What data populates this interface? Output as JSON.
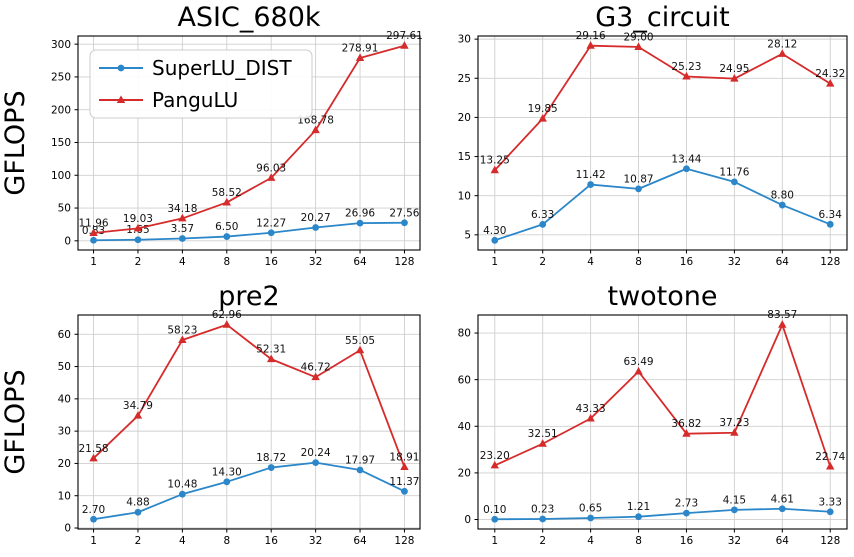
{
  "figure": {
    "ylabel": "GFLOPS",
    "background": "#ffffff",
    "grid_color": "#cfcfcf",
    "spine_color": "#000000",
    "text_color": "#000000",
    "legend": {
      "position": "upper-left",
      "entries": [
        {
          "label": "SuperLU_DIST",
          "color": "#2b87c9",
          "marker": "circle"
        },
        {
          "label": "PanguLU",
          "color": "#d62b2b",
          "marker": "triangle"
        }
      ]
    }
  },
  "chart_data": [
    {
      "type": "line",
      "title": "ASIC_680k",
      "xlabel": "",
      "ylabel": "GFLOPS",
      "x": [
        1,
        2,
        4,
        8,
        16,
        32,
        64,
        128
      ],
      "x_scale": "log2",
      "xtick_labels": [
        "1",
        "2",
        "4",
        "8",
        "16",
        "32",
        "64",
        "128"
      ],
      "yticks": [
        0,
        50,
        100,
        150,
        200,
        250,
        300
      ],
      "ylim": [
        -14.01,
        312.45
      ],
      "grid": true,
      "show_legend": true,
      "show_ylabel": true,
      "series": [
        {
          "name": "SuperLU_DIST",
          "color": "#2b87c9",
          "marker": "circle",
          "values": [
            0.83,
            1.65,
            3.57,
            6.5,
            12.27,
            20.27,
            26.96,
            27.56
          ]
        },
        {
          "name": "PanguLU",
          "color": "#d62b2b",
          "marker": "triangle",
          "values": [
            11.96,
            19.03,
            34.18,
            58.52,
            96.03,
            168.78,
            278.91,
            297.61
          ]
        }
      ]
    },
    {
      "type": "line",
      "title": "G3_circuit",
      "xlabel": "",
      "ylabel": "",
      "x": [
        1,
        2,
        4,
        8,
        16,
        32,
        64,
        128
      ],
      "x_scale": "log2",
      "xtick_labels": [
        "1",
        "2",
        "4",
        "8",
        "16",
        "32",
        "64",
        "128"
      ],
      "yticks": [
        5,
        10,
        15,
        20,
        25,
        30
      ],
      "ylim": [
        3.06,
        30.4
      ],
      "grid": true,
      "show_legend": false,
      "show_ylabel": false,
      "series": [
        {
          "name": "SuperLU_DIST",
          "color": "#2b87c9",
          "marker": "circle",
          "values": [
            4.3,
            6.33,
            11.42,
            10.87,
            13.44,
            11.76,
            8.8,
            6.34
          ]
        },
        {
          "name": "PanguLU",
          "color": "#d62b2b",
          "marker": "triangle",
          "values": [
            13.25,
            19.85,
            29.16,
            29.0,
            25.23,
            24.95,
            28.12,
            24.32
          ]
        }
      ]
    },
    {
      "type": "line",
      "title": "pre2",
      "xlabel": "",
      "ylabel": "GFLOPS",
      "x": [
        1,
        2,
        4,
        8,
        16,
        32,
        64,
        128
      ],
      "x_scale": "log2",
      "xtick_labels": [
        "1",
        "2",
        "4",
        "8",
        "16",
        "32",
        "64",
        "128"
      ],
      "yticks": [
        0,
        10,
        20,
        30,
        40,
        50,
        60
      ],
      "ylim": [
        -0.31,
        65.97
      ],
      "grid": true,
      "show_legend": false,
      "show_ylabel": true,
      "series": [
        {
          "name": "SuperLU_DIST",
          "color": "#2b87c9",
          "marker": "circle",
          "values": [
            2.7,
            4.88,
            10.48,
            14.3,
            18.72,
            20.24,
            17.97,
            11.37
          ]
        },
        {
          "name": "PanguLU",
          "color": "#d62b2b",
          "marker": "triangle",
          "values": [
            21.58,
            34.79,
            58.23,
            62.96,
            52.31,
            46.72,
            55.05,
            18.91
          ]
        }
      ]
    },
    {
      "type": "line",
      "title": "twotone",
      "xlabel": "",
      "ylabel": "",
      "x": [
        1,
        2,
        4,
        8,
        16,
        32,
        64,
        128
      ],
      "x_scale": "log2",
      "xtick_labels": [
        "1",
        "2",
        "4",
        "8",
        "16",
        "32",
        "64",
        "128"
      ],
      "yticks": [
        0,
        20,
        40,
        60,
        80
      ],
      "ylim": [
        -4.07,
        87.74
      ],
      "grid": true,
      "show_legend": false,
      "show_ylabel": false,
      "series": [
        {
          "name": "SuperLU_DIST",
          "color": "#2b87c9",
          "marker": "circle",
          "values": [
            0.1,
            0.23,
            0.65,
            1.21,
            2.73,
            4.15,
            4.61,
            3.33
          ]
        },
        {
          "name": "PanguLU",
          "color": "#d62b2b",
          "marker": "triangle",
          "values": [
            23.2,
            32.51,
            43.33,
            63.49,
            36.82,
            37.23,
            83.57,
            22.74
          ]
        }
      ]
    }
  ]
}
